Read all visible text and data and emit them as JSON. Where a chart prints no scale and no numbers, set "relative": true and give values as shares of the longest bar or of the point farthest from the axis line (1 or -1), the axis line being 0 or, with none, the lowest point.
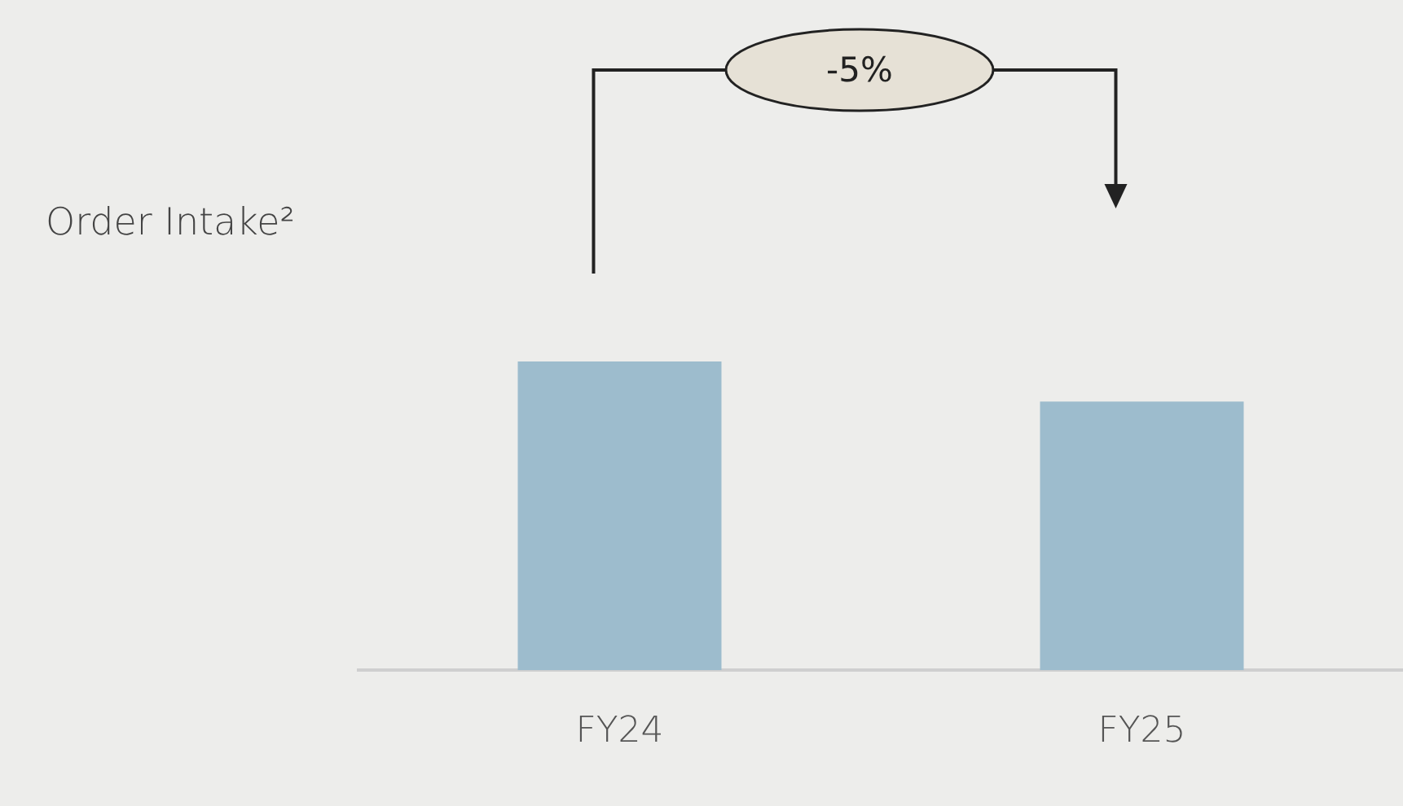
{
  "chart_data": {
    "type": "bar",
    "title": "Order Intake²",
    "categories": [
      "FY24",
      "FY25"
    ],
    "values": [
      1,
      0.87
    ],
    "color": "#9dbccd",
    "relative": true,
    "annotations": [
      "-5%"
    ]
  }
}
